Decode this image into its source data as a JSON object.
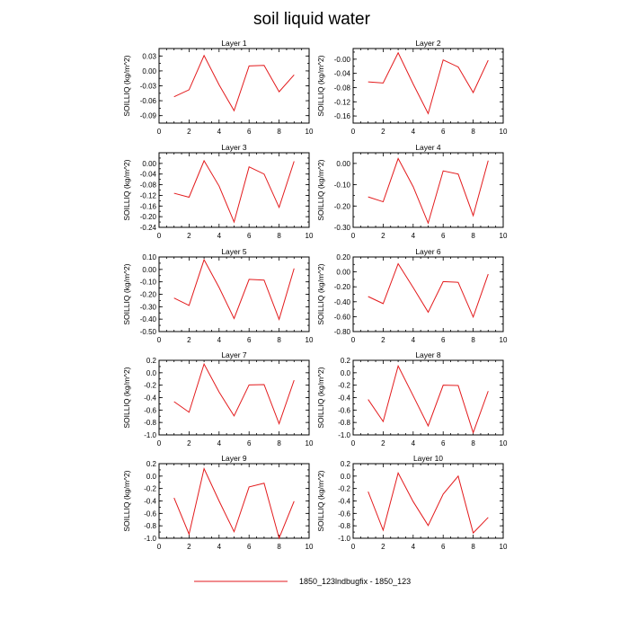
{
  "title": "soil liquid water",
  "legend": {
    "series_label": "1850_123lndbugfix - 1850_123",
    "color": "#e31a1c"
  },
  "chart_data": [
    {
      "type": "line",
      "title": "Layer 1",
      "ylabel": "SOILLIQ  (kg/m^2)",
      "xlim": [
        0,
        10
      ],
      "ylim": [
        -0.105,
        0.045
      ],
      "yticks": [
        -0.09,
        -0.06,
        -0.03,
        0.0,
        0.03
      ],
      "ytick_labels": [
        "-0.09",
        "-0.06",
        "-0.03",
        "0.00",
        "0.03"
      ],
      "x": [
        1,
        2,
        3,
        4,
        5,
        6,
        7,
        8,
        9
      ],
      "series": [
        {
          "values": [
            -0.052,
            -0.038,
            0.031,
            -0.028,
            -0.08,
            0.01,
            0.011,
            -0.042,
            -0.008
          ]
        }
      ]
    },
    {
      "type": "line",
      "title": "Layer 2",
      "ylabel": "SOILLIQ  (kg/m^2)",
      "xlim": [
        0,
        10
      ],
      "ylim": [
        -0.18,
        0.03
      ],
      "yticks": [
        -0.16,
        -0.12,
        -0.08,
        -0.04,
        0.0
      ],
      "ytick_labels": [
        "-0.16",
        "-0.12",
        "-0.08",
        "-0.04",
        "-0.00"
      ],
      "x": [
        1,
        2,
        3,
        4,
        5,
        6,
        7,
        8,
        9
      ],
      "series": [
        {
          "values": [
            -0.064,
            -0.067,
            0.018,
            -0.07,
            -0.153,
            -0.002,
            -0.022,
            -0.094,
            -0.003
          ]
        }
      ]
    },
    {
      "type": "line",
      "title": "Layer 3",
      "ylabel": "SOILLIQ  (kg/m^2)",
      "xlim": [
        0,
        10
      ],
      "ylim": [
        -0.24,
        0.04
      ],
      "yticks": [
        -0.24,
        -0.2,
        -0.16,
        -0.12,
        -0.08,
        -0.04,
        0.0
      ],
      "ytick_labels": [
        "-0.24",
        "-0.20",
        "-0.16",
        "-0.12",
        "-0.08",
        "-0.04",
        "0.00"
      ],
      "x": [
        1,
        2,
        3,
        4,
        5,
        6,
        7,
        8,
        9
      ],
      "series": [
        {
          "values": [
            -0.112,
            -0.127,
            0.01,
            -0.085,
            -0.22,
            -0.013,
            -0.04,
            -0.165,
            0.008
          ]
        }
      ]
    },
    {
      "type": "line",
      "title": "Layer 4",
      "ylabel": "SOILLIQ  (kg/m^2)",
      "xlim": [
        0,
        10
      ],
      "ylim": [
        -0.3,
        0.05
      ],
      "yticks": [
        -0.3,
        -0.2,
        -0.1,
        0.0
      ],
      "ytick_labels": [
        "-0.30",
        "-0.20",
        "-0.10",
        "0.00"
      ],
      "x": [
        1,
        2,
        3,
        4,
        5,
        6,
        7,
        8,
        9
      ],
      "series": [
        {
          "values": [
            -0.157,
            -0.18,
            0.023,
            -0.109,
            -0.28,
            -0.035,
            -0.05,
            -0.245,
            0.013
          ]
        }
      ]
    },
    {
      "type": "line",
      "title": "Layer 5",
      "ylabel": "SOILLIQ  (kg/m^2)",
      "xlim": [
        0,
        10
      ],
      "ylim": [
        -0.5,
        0.1
      ],
      "yticks": [
        -0.5,
        -0.4,
        -0.3,
        -0.2,
        -0.1,
        0.0,
        0.1
      ],
      "ytick_labels": [
        "-0.50",
        "-0.40",
        "-0.30",
        "-0.20",
        "-0.10",
        "0.00",
        "0.10"
      ],
      "x": [
        1,
        2,
        3,
        4,
        5,
        6,
        7,
        8,
        9
      ],
      "series": [
        {
          "values": [
            -0.23,
            -0.29,
            0.078,
            -0.145,
            -0.395,
            -0.08,
            -0.086,
            -0.402,
            0.008
          ]
        }
      ]
    },
    {
      "type": "line",
      "title": "Layer 6",
      "ylabel": "SOILLIQ  (kg/m^2)",
      "xlim": [
        0,
        10
      ],
      "ylim": [
        -0.8,
        0.2
      ],
      "yticks": [
        -0.8,
        -0.6,
        -0.4,
        -0.2,
        0.0,
        0.2
      ],
      "ytick_labels": [
        "-0.80",
        "-0.60",
        "-0.40",
        "-0.20",
        "0.00",
        "0.20"
      ],
      "x": [
        1,
        2,
        3,
        4,
        5,
        6,
        7,
        8,
        9
      ],
      "series": [
        {
          "values": [
            -0.33,
            -0.425,
            0.11,
            -0.21,
            -0.54,
            -0.13,
            -0.14,
            -0.605,
            -0.03
          ]
        }
      ]
    },
    {
      "type": "line",
      "title": "Layer 7",
      "ylabel": "SOILLIQ  (kg/m^2)",
      "xlim": [
        0,
        10
      ],
      "ylim": [
        -1.0,
        0.2
      ],
      "yticks": [
        -1.0,
        -0.8,
        -0.6,
        -0.4,
        -0.2,
        0.0,
        0.2
      ],
      "ytick_labels": [
        "-1.0",
        "-0.8",
        "-0.6",
        "-0.4",
        "-0.2",
        "0.0",
        "0.2"
      ],
      "x": [
        1,
        2,
        3,
        4,
        5,
        6,
        7,
        8,
        9
      ],
      "series": [
        {
          "values": [
            -0.465,
            -0.635,
            0.14,
            -0.31,
            -0.695,
            -0.195,
            -0.19,
            -0.82,
            -0.12
          ]
        }
      ]
    },
    {
      "type": "line",
      "title": "Layer 8",
      "ylabel": "SOILLIQ  (kg/m^2)",
      "xlim": [
        0,
        10
      ],
      "ylim": [
        -1.0,
        0.2
      ],
      "yticks": [
        -1.0,
        -0.8,
        -0.6,
        -0.4,
        -0.2,
        0.0,
        0.2
      ],
      "ytick_labels": [
        "-1.0",
        "-0.8",
        "-0.6",
        "-0.4",
        "-0.2",
        "0.0",
        "0.2"
      ],
      "x": [
        1,
        2,
        3,
        4,
        5,
        6,
        7,
        8,
        9
      ],
      "series": [
        {
          "values": [
            -0.43,
            -0.785,
            0.11,
            -0.37,
            -0.855,
            -0.2,
            -0.205,
            -0.965,
            -0.295
          ]
        }
      ]
    },
    {
      "type": "line",
      "title": "Layer 9",
      "ylabel": "SOILLIQ  (kg/m^2)",
      "xlim": [
        0,
        10
      ],
      "ylim": [
        -1.0,
        0.2
      ],
      "yticks": [
        -1.0,
        -0.8,
        -0.6,
        -0.4,
        -0.2,
        0.0,
        0.2
      ],
      "ytick_labels": [
        "-1.0",
        "-0.8",
        "-0.6",
        "-0.4",
        "-0.2",
        "0.0",
        "0.2"
      ],
      "x": [
        1,
        2,
        3,
        4,
        5,
        6,
        7,
        8,
        9
      ],
      "series": [
        {
          "values": [
            -0.35,
            -0.935,
            0.12,
            -0.4,
            -0.895,
            -0.175,
            -0.115,
            -1.0,
            -0.405
          ]
        }
      ]
    },
    {
      "type": "line",
      "title": "Layer 10",
      "ylabel": "SOILLIQ  (kg/m^2)",
      "xlim": [
        0,
        10
      ],
      "ylim": [
        -1.0,
        0.2
      ],
      "yticks": [
        -1.0,
        -0.8,
        -0.6,
        -0.4,
        -0.2,
        0.0,
        0.2
      ],
      "ytick_labels": [
        "-1.0",
        "-0.8",
        "-0.6",
        "-0.4",
        "-0.2",
        "0.0",
        "0.2"
      ],
      "x": [
        1,
        2,
        3,
        4,
        5,
        6,
        7,
        8,
        9
      ],
      "series": [
        {
          "values": [
            -0.25,
            -0.87,
            0.05,
            -0.41,
            -0.795,
            -0.29,
            0.0,
            -0.915,
            -0.665
          ]
        }
      ]
    }
  ]
}
